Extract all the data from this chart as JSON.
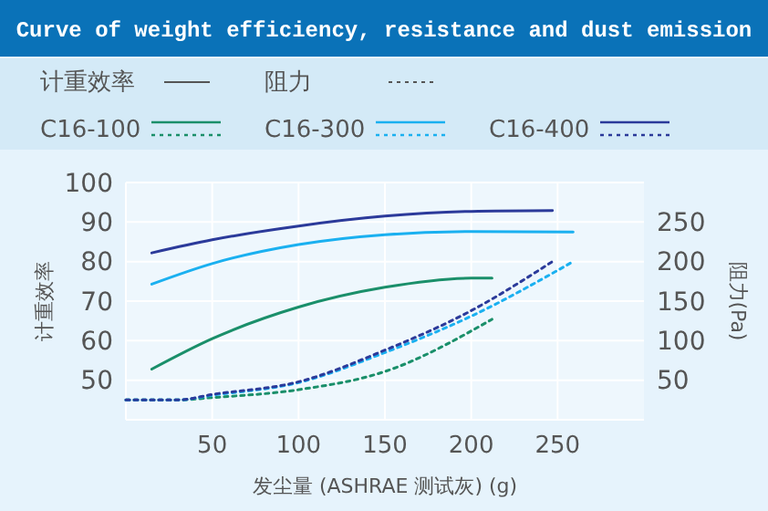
{
  "chart_data": {
    "type": "line",
    "title": "Curve of weight efficiency, resistance and dust emission",
    "xlabel": "发尘量 (ASHRAE 测试灰) (g)",
    "ylabel": "计重效率",
    "y2label": "阻力(Pa)",
    "annotations": [
      "计重效率",
      "阻力"
    ],
    "xlim": [
      0,
      300
    ],
    "xticks": [
      50,
      100,
      150,
      200,
      250
    ],
    "ylim": [
      40,
      100
    ],
    "yticks": [
      50,
      60,
      70,
      80,
      90,
      100
    ],
    "y2lim": [
      0,
      300
    ],
    "y2ticks": [
      50,
      100,
      150,
      200,
      250
    ],
    "grid": true,
    "legend": "top",
    "series": [
      {
        "name": "C16-100",
        "color": "#1a8f6a",
        "line_style": "solid",
        "x": [
          15,
          50,
          100,
          150,
          200,
          212
        ],
        "values": [
          52.8,
          60.5,
          68.5,
          73.5,
          75.8,
          75.8
        ]
      },
      {
        "color": "#1a8f6a",
        "line_style": "dotted",
        "axis": "y2",
        "x": [
          0,
          30,
          50,
          100,
          150,
          212
        ],
        "values": [
          25,
          25,
          28,
          38,
          61,
          127
        ]
      },
      {
        "name": "C16-300",
        "color": "#1ab0f0",
        "line_style": "solid",
        "x": [
          15,
          50,
          100,
          150,
          200,
          259
        ],
        "values": [
          74.3,
          79.5,
          84.3,
          86.8,
          87.6,
          87.5
        ]
      },
      {
        "color": "#1ab0f0",
        "line_style": "dotted",
        "axis": "y2",
        "x": [
          0,
          30,
          50,
          100,
          150,
          200,
          259
        ],
        "values": [
          25,
          25,
          31,
          47,
          85,
          131,
          200
        ]
      },
      {
        "name": "C16-400",
        "color": "#2b3a9a",
        "line_style": "solid",
        "x": [
          15,
          50,
          100,
          150,
          200,
          247
        ],
        "values": [
          82.2,
          85.5,
          89,
          91.5,
          92.7,
          92.9
        ]
      },
      {
        "color": "#2b3a9a",
        "line_style": "dotted",
        "axis": "y2",
        "x": [
          0,
          30,
          50,
          100,
          150,
          200,
          247
        ],
        "values": [
          25,
          25,
          32,
          48,
          88,
          138,
          200
        ]
      }
    ]
  }
}
